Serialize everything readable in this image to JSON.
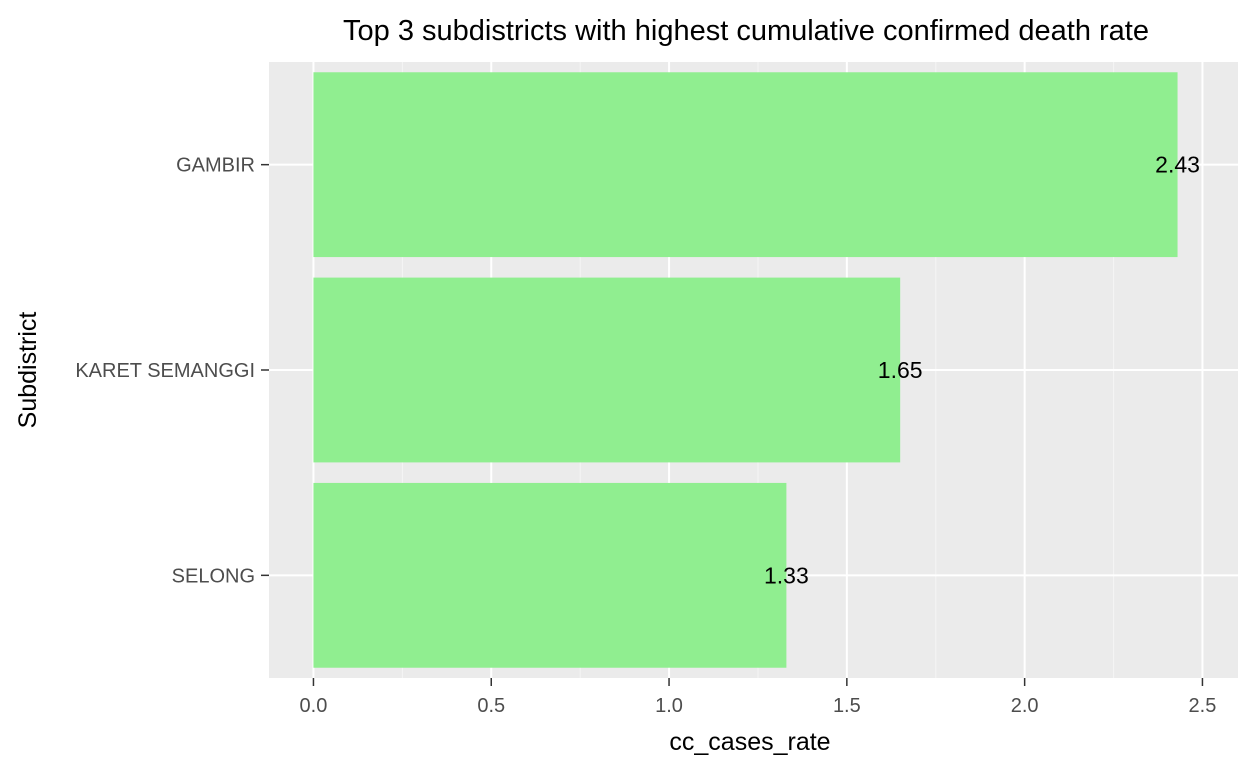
{
  "chart_data": {
    "type": "bar",
    "orientation": "horizontal",
    "title": "Top 3 subdistricts with highest cumulative confirmed death rate",
    "xlabel": "cc_cases_rate",
    "ylabel": "Subdistrict",
    "categories": [
      "GAMBIR",
      "KARET SEMANGGI",
      "SELONG"
    ],
    "values": [
      2.43,
      1.65,
      1.33
    ],
    "data_labels": [
      "2.43",
      "1.65",
      "1.33"
    ],
    "xlim": [
      -0.125,
      2.6
    ],
    "x_ticks": [
      0.0,
      0.5,
      1.0,
      1.5,
      2.0,
      2.5
    ],
    "x_tick_labels": [
      "0.0",
      "0.5",
      "1.0",
      "1.5",
      "2.0",
      "2.5"
    ],
    "grid": true,
    "legend": "none",
    "colors": {
      "bar": "#90ee90",
      "panel": "#ebebeb",
      "grid_major": "#ffffff",
      "grid_minor": "#f5f5f5",
      "tick_text": "#4d4d4d",
      "title_text": "#000000"
    }
  }
}
